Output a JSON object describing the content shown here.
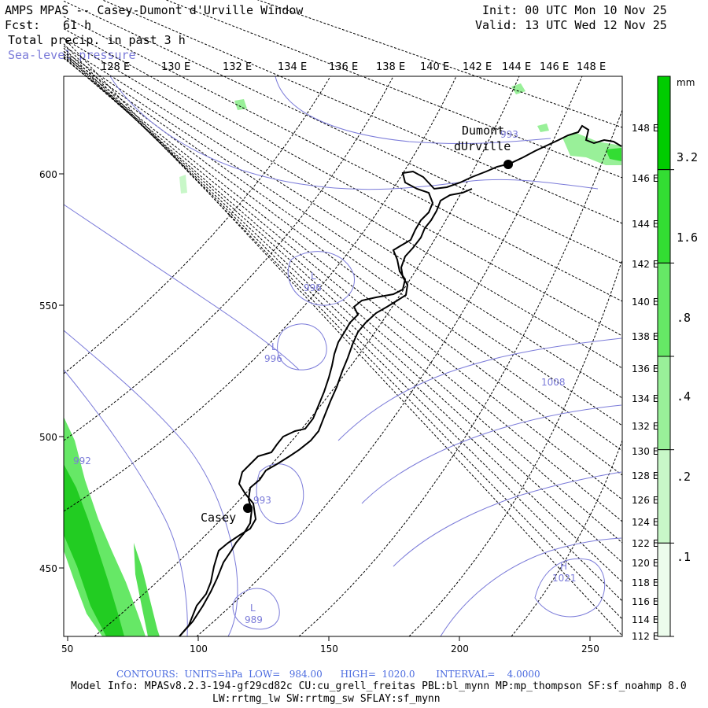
{
  "header": {
    "title": "AMPS MPAS -- Casey-Dumont d'Urville Window",
    "fcst_label": "Fcst:",
    "fcst_value": "61 h",
    "field": "Total precip. in past 3 h",
    "overlay": "Sea-level pressure",
    "init": "Init: 00 UTC Mon 10 Nov 25",
    "valid": "Valid: 13 UTC Wed 12 Nov 25"
  },
  "top_longitudes": [
    "128 E",
    "130 E",
    "132 E",
    "134 E",
    "136 E",
    "138 E",
    "140 E",
    "142 E",
    "144 E",
    "146 E",
    "148 E"
  ],
  "right_longitudes": [
    "148 E",
    "146 E",
    "144 E",
    "142 E",
    "140 E",
    "138 E",
    "136 E",
    "134 E",
    "132 E",
    "130 E",
    "128 E",
    "126 E",
    "124 E",
    "122 E",
    "120 E",
    "118 E",
    "116 E",
    "114 E",
    "112 E"
  ],
  "x_axis_ticks": [
    "50",
    "100",
    "150",
    "200",
    "250"
  ],
  "y_axis_ticks": [
    "600",
    "550",
    "500",
    "450"
  ],
  "colorbar": {
    "unit": "mm",
    "labels": [
      "3.2",
      "1.6",
      ".8",
      ".4",
      ".2",
      ".1"
    ],
    "colors": [
      "#00cc00",
      "#33dd33",
      "#66e866",
      "#99f099",
      "#c8f7c8",
      "#ecfcec"
    ]
  },
  "stations": [
    {
      "name": "Casey"
    },
    {
      "name": "Dumont",
      "name2": "dUrville"
    }
  ],
  "contour_labels": [
    {
      "text": "L",
      "value": "996"
    },
    {
      "text": "L",
      "value": "996"
    },
    {
      "text": "H",
      "value": "1021"
    },
    {
      "text": "L",
      "value": "989"
    },
    {
      "text": "",
      "value": "1008"
    },
    {
      "text": "",
      "value": "993"
    },
    {
      "text": "",
      "value": "992"
    },
    {
      "text": "",
      "value": "993"
    }
  ],
  "footer": {
    "contours": "CONTOURS:  UNITS=hPa  LOW=   984.00      HIGH=  1020.0       INTERVAL=    4.0000",
    "model_info": "Model Info: MPASv8.2.3-194-gf29cd82c CU:cu_grell_freitas PBL:bl_mynn MP:mp_thompson SF:sf_noahmp 8.0",
    "model_info2": "LW:rrtmg_lw SW:rrtmg_sw SFLAY:sf_mynn"
  }
}
